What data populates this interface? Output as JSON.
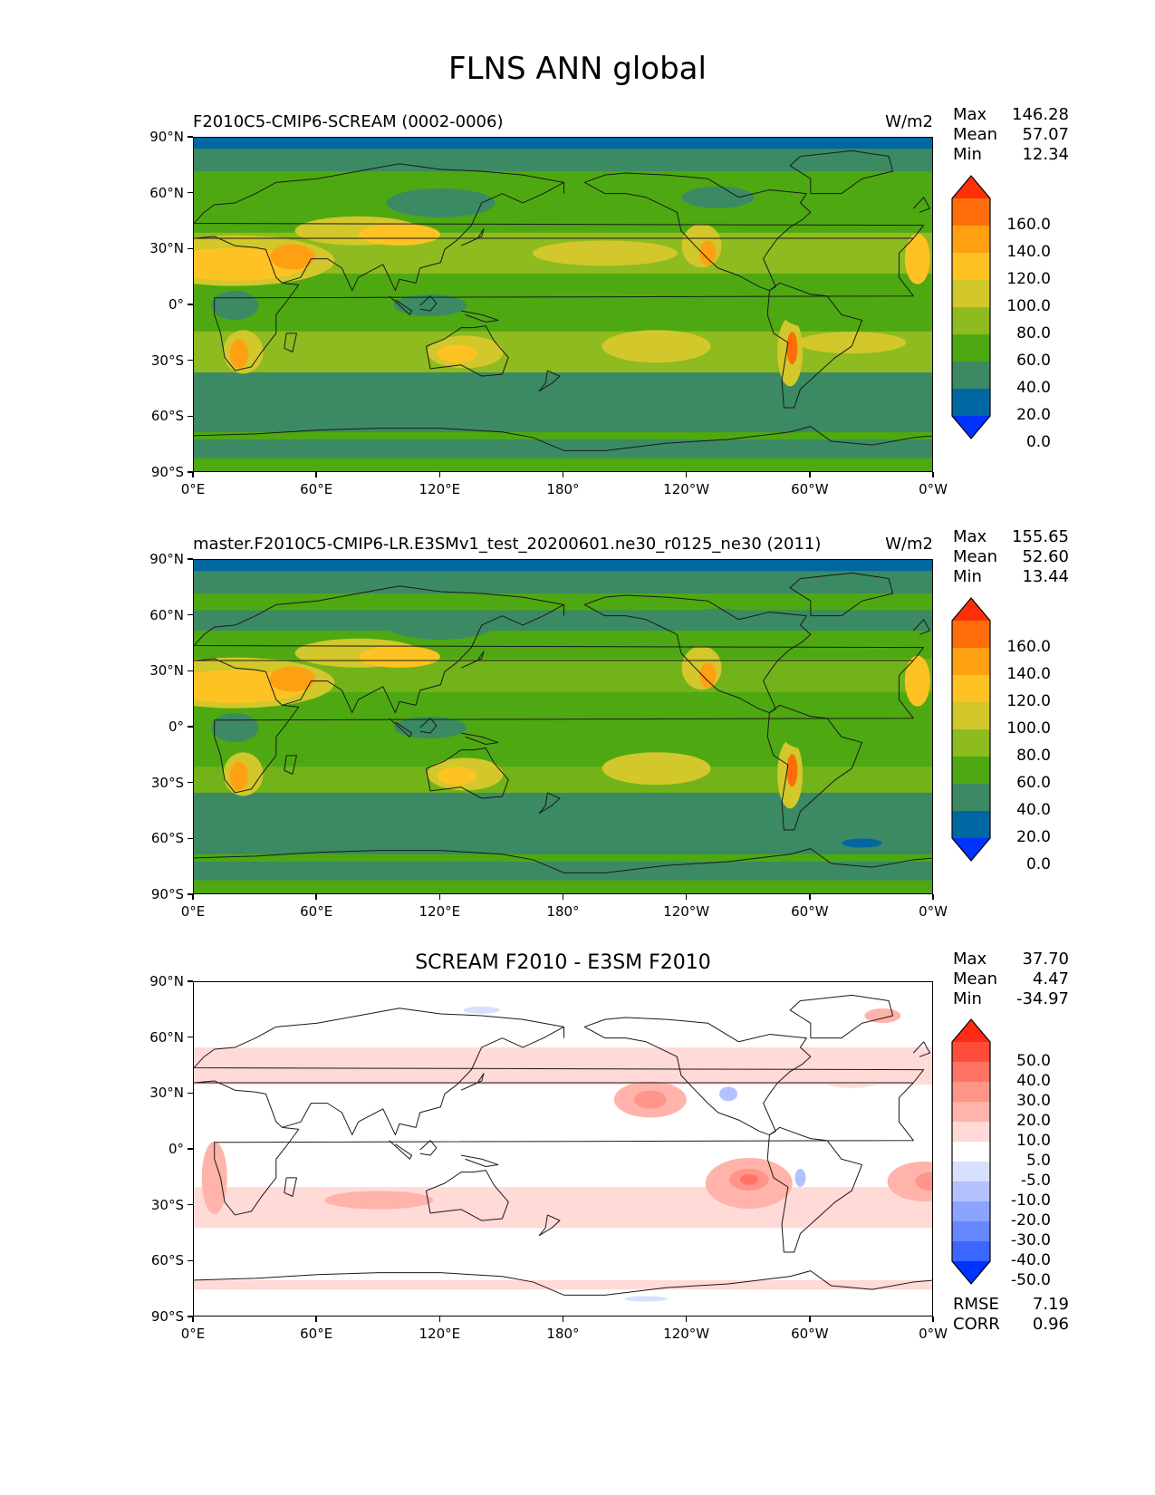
{
  "figure": {
    "title": "FLNS ANN global"
  },
  "colors": {
    "abs": [
      "#0033ff",
      "#0067a3",
      "#3b8a63",
      "#4ea812",
      "#8ebb1f",
      "#d2c72b",
      "#ffc223",
      "#ffa012",
      "#ff6d0b",
      "#ff2f0a"
    ],
    "diff": [
      "#0033ff",
      "#3b66ff",
      "#6688ff",
      "#8aa4ff",
      "#b3c2ff",
      "#d8e0ff",
      "#ffffff",
      "#ffdad7",
      "#ffb3aa",
      "#ff9589",
      "#ff7465",
      "#ff4d3b",
      "#ff2b14"
    ]
  },
  "lon_labels": [
    "0°E",
    "60°E",
    "120°E",
    "180°",
    "120°W",
    "60°W",
    "0°W"
  ],
  "lat_labels": [
    "90°N",
    "60°N",
    "30°N",
    "0°",
    "30°S",
    "60°S",
    "90°S"
  ],
  "panels": [
    {
      "left_title": "F2010C5-CMIP6-SCREAM (0002-0006)",
      "units": "W/m2",
      "stats": [
        {
          "label": "Max",
          "value": "146.28"
        },
        {
          "label": "Mean",
          "value": "57.07"
        },
        {
          "label": "Min",
          "value": "12.34"
        }
      ],
      "colorbar_labels": [
        "160.0",
        "140.0",
        "120.0",
        "100.0",
        "80.0",
        "60.0",
        "40.0",
        "20.0",
        "0.0"
      ]
    },
    {
      "left_title": "master.F2010C5-CMIP6-LR.E3SMv1_test_20200601.ne30_r0125_ne30 (2011)",
      "units": "W/m2",
      "stats": [
        {
          "label": "Max",
          "value": "155.65"
        },
        {
          "label": "Mean",
          "value": "52.60"
        },
        {
          "label": "Min",
          "value": "13.44"
        }
      ],
      "colorbar_labels": [
        "160.0",
        "140.0",
        "120.0",
        "100.0",
        "80.0",
        "60.0",
        "40.0",
        "20.0",
        "0.0"
      ]
    },
    {
      "center_title": "SCREAM F2010 - E3SM F2010",
      "stats": [
        {
          "label": "Max",
          "value": "37.70"
        },
        {
          "label": "Mean",
          "value": "4.47"
        },
        {
          "label": "Min",
          "value": "-34.97"
        }
      ],
      "colorbar_labels": [
        "50.0",
        "40.0",
        "30.0",
        "20.0",
        "10.0",
        "5.0",
        "-5.0",
        "-10.0",
        "-20.0",
        "-30.0",
        "-40.0",
        "-50.0"
      ],
      "metrics": [
        {
          "label": "RMSE",
          "value": "7.19"
        },
        {
          "label": "CORR",
          "value": "0.96"
        }
      ]
    }
  ],
  "chart_data": [
    {
      "type": "heatmap",
      "title": "F2010C5-CMIP6-SCREAM (0002-0006)",
      "units": "W/m2",
      "x_ticks": [
        "0°E",
        "60°E",
        "120°E",
        "180°",
        "120°W",
        "60°W",
        "0°W"
      ],
      "y_ticks": [
        "90°N",
        "60°N",
        "30°N",
        "0°",
        "30°S",
        "60°S",
        "90°S"
      ],
      "xlim": [
        0,
        360
      ],
      "ylim": [
        -90,
        90
      ],
      "levels": [
        0,
        20,
        40,
        60,
        80,
        100,
        120,
        140,
        160
      ],
      "max": 146.28,
      "mean": 57.07,
      "min": 12.34
    },
    {
      "type": "heatmap",
      "title": "master.F2010C5-CMIP6-LR.E3SMv1_test_20200601.ne30_r0125_ne30 (2011)",
      "units": "W/m2",
      "x_ticks": [
        "0°E",
        "60°E",
        "120°E",
        "180°",
        "120°W",
        "60°W",
        "0°W"
      ],
      "y_ticks": [
        "90°N",
        "60°N",
        "30°N",
        "0°",
        "30°S",
        "60°S",
        "90°S"
      ],
      "xlim": [
        0,
        360
      ],
      "ylim": [
        -90,
        90
      ],
      "levels": [
        0,
        20,
        40,
        60,
        80,
        100,
        120,
        140,
        160
      ],
      "max": 155.65,
      "mean": 52.6,
      "min": 13.44
    },
    {
      "type": "heatmap",
      "title": "SCREAM F2010 - E3SM F2010",
      "x_ticks": [
        "0°E",
        "60°E",
        "120°E",
        "180°",
        "120°W",
        "60°W",
        "0°W"
      ],
      "y_ticks": [
        "90°N",
        "60°N",
        "30°N",
        "0°",
        "30°S",
        "60°S",
        "90°S"
      ],
      "xlim": [
        0,
        360
      ],
      "ylim": [
        -90,
        90
      ],
      "levels": [
        -50,
        -40,
        -30,
        -20,
        -10,
        -5,
        5,
        10,
        20,
        30,
        40,
        50
      ],
      "max": 37.7,
      "mean": 4.47,
      "min": -34.97,
      "rmse": 7.19,
      "corr": 0.96
    }
  ]
}
